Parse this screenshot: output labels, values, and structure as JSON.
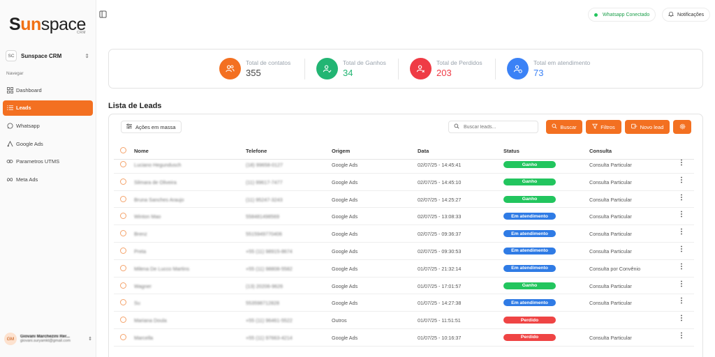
{
  "sidebar": {
    "logo": {
      "part1": "S",
      "part2": "un",
      "part3": "space",
      "sub": "CRM"
    },
    "team": {
      "initials": "SC",
      "name": "Sunspace CRM"
    },
    "nav_label": "Navegar",
    "items": [
      {
        "label": "Dashboard",
        "icon": "dashboard-icon"
      },
      {
        "label": "Leads",
        "icon": "list-icon",
        "active": true
      },
      {
        "label": "Whatsapp",
        "icon": "whatsapp-icon"
      },
      {
        "label": "Google Ads",
        "icon": "google-ads-icon"
      },
      {
        "label": "Parametros UTMS",
        "icon": "link-icon"
      },
      {
        "label": "Meta Ads",
        "icon": "meta-icon"
      }
    ],
    "user": {
      "initials": "GM",
      "name": "Giovani Marchezini Rer...",
      "email": "giovani.suryamkt@gmail.com"
    }
  },
  "header": {
    "whatsapp_status": "Whatsapp Conectado",
    "notifications": "Notificações"
  },
  "stats": [
    {
      "label": "Total de contatos",
      "value": "355",
      "color": "#f37021",
      "icon": "users-icon"
    },
    {
      "label": "Total de Ganhos",
      "value": "34",
      "color": "#22b573",
      "icon": "user-check-icon"
    },
    {
      "label": "Total de Perdidos",
      "value": "203",
      "color": "#ef3b45",
      "icon": "user-x-icon"
    },
    {
      "label": "Total em atendimento",
      "value": "73",
      "color": "#3b82f6",
      "icon": "user-clock-icon"
    }
  ],
  "leads": {
    "title": "Lista de Leads",
    "bulk_actions": "Ações em massa",
    "search_placeholder": "Buscar leads...",
    "buttons": {
      "search": "Buscar",
      "filters": "Filtros",
      "new_lead": "Novo lead"
    },
    "columns": [
      "Nome",
      "Telefone",
      "Origem",
      "Data",
      "Status",
      "Consulta"
    ],
    "rows": [
      {
        "name": "Luciano Hegundusch",
        "phone": "(18) 99658-0127",
        "origin": "Google Ads",
        "date": "02/07/25 - 14:45:41",
        "status": "Ganho",
        "consult": "Consulta Particular"
      },
      {
        "name": "Silmara de Oliveira",
        "phone": "(11) 99617-7477",
        "origin": "Google Ads",
        "date": "02/07/25 - 14:45:10",
        "status": "Ganho",
        "consult": "Consulta Particular"
      },
      {
        "name": "Bruna Sanches Araujo",
        "phone": "(11) 95247-3243",
        "origin": "Google Ads",
        "date": "02/07/25 - 14:25:27",
        "status": "Ganho",
        "consult": "Consulta Particular"
      },
      {
        "name": "Winton Mao",
        "phone": "558481498569",
        "origin": "Google Ads",
        "date": "02/07/25 - 13:08:33",
        "status": "Em atendimento",
        "consult": "Consulta Particular"
      },
      {
        "name": "Brenz",
        "phone": "5515949770406",
        "origin": "Google Ads",
        "date": "02/07/25 - 09:36:37",
        "status": "Em atendimento",
        "consult": "Consulta Particular"
      },
      {
        "name": "Preta",
        "phone": "+55 (11) 98915-8674",
        "origin": "Google Ads",
        "date": "02/07/25 - 09:30:53",
        "status": "Em atendimento",
        "consult": "Consulta Particular"
      },
      {
        "name": "Milena De Lucco Martins",
        "phone": "+55 (11) 98808-5582",
        "origin": "Google Ads",
        "date": "01/07/25 - 21:32:14",
        "status": "Em atendimento",
        "consult": "Consulta por Convênio"
      },
      {
        "name": "Wagner",
        "phone": "(13) 20206-9626",
        "origin": "Google Ads",
        "date": "01/07/25 - 17:01:57",
        "status": "Ganho",
        "consult": "Consulta Particular"
      },
      {
        "name": "Su",
        "phone": "553598712828",
        "origin": "Google Ads",
        "date": "01/07/25 - 14:27:38",
        "status": "Em atendimento",
        "consult": "Consulta Particular"
      },
      {
        "name": "Mariana Doula",
        "phone": "+55 (11) 96461-5522",
        "origin": "Outros",
        "date": "01/07/25 - 11:51:51",
        "status": "Perdido",
        "consult": ""
      },
      {
        "name": "Marcella",
        "phone": "+55 (11) 97663-4214",
        "origin": "Google Ads",
        "date": "01/07/25 - 10:16:37",
        "status": "Perdido",
        "consult": "Consulta Particular"
      }
    ]
  },
  "status_colors": {
    "Ganho": "#22c55e",
    "Em atendimento": "#2f7be5",
    "Perdido": "#ef4444"
  },
  "accent": "#f37021"
}
